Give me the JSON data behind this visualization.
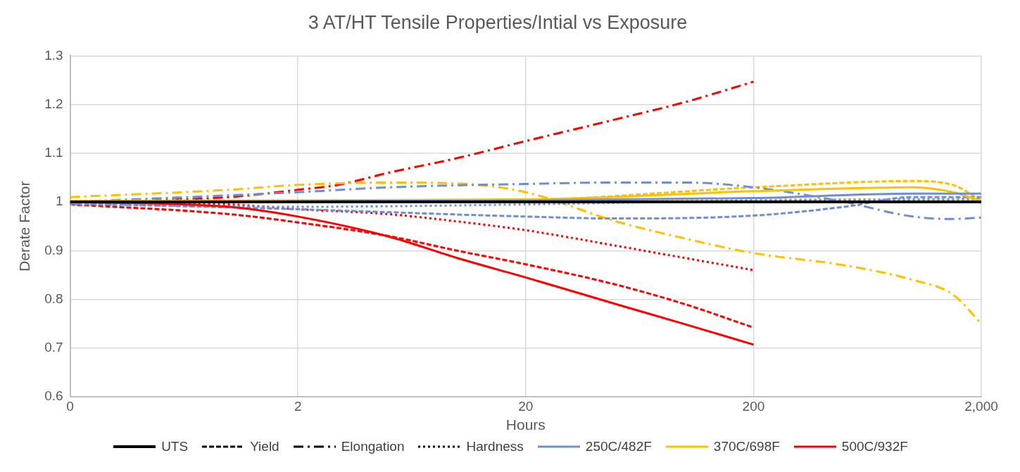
{
  "chart_data": {
    "type": "line",
    "title": "3 AT/HT Tensile Properties/Intial vs Exposure",
    "xlabel": "Hours",
    "ylabel": "Derate Factor",
    "log": "x",
    "grid": true,
    "legend": "bottom",
    "marker": "none",
    "xlim": [
      0.2,
      2000
    ],
    "xticks": [
      {
        "value": 0.2,
        "label": "0"
      },
      2,
      20,
      200,
      {
        "value": 2000,
        "label": "2,000"
      }
    ],
    "ylim": [
      0.6,
      1.3
    ],
    "yticks": [
      0.6,
      0.7,
      0.8,
      0.9,
      1,
      1.1,
      1.2,
      1.3
    ],
    "annotations": [
      "Yield",
      "Elongation",
      "Hardness"
    ],
    "series": [
      {
        "name": "UTS",
        "color": "#000000",
        "line_style": "solid",
        "x": [
          0.2,
          2000
        ],
        "values": [
          1,
          1
        ]
      },
      {
        "name": "250C/482F",
        "color": "#6f8fd4",
        "line_style": "solid",
        "x": [
          0.2,
          20,
          200,
          1000,
          2000
        ],
        "values": [
          1.0,
          1.003,
          1.008,
          1.017,
          1.017
        ]
      },
      {
        "name": "370C/698F",
        "color": "#ffc000",
        "line_style": "solid",
        "x": [
          0.2,
          20,
          200,
          1000,
          1500,
          2000
        ],
        "values": [
          1.002,
          1.005,
          1.022,
          1.03,
          1.02,
          1.002
        ]
      },
      {
        "name": "500C/932F",
        "color": "#ff0000",
        "line_style": "solid",
        "x": [
          0.2,
          1,
          2,
          5,
          10,
          20,
          50,
          100,
          200
        ],
        "values": [
          1.0,
          0.99,
          0.97,
          0.929,
          0.885,
          0.845,
          0.79,
          0.749,
          0.707
        ]
      },
      {
        "color": "#6f8fd4",
        "line_style": "dashed",
        "x": [
          0.2,
          2,
          20,
          50,
          200,
          500,
          1000,
          2000
        ],
        "values": [
          0.997,
          0.985,
          0.97,
          0.966,
          0.972,
          0.99,
          1.01,
          1.01
        ]
      },
      {
        "color": "#6f8fd4",
        "line_style": "dashdot",
        "x": [
          0.2,
          2,
          5,
          20,
          50,
          100,
          200,
          500,
          1000,
          1500,
          2000
        ],
        "values": [
          1.0,
          1.02,
          1.03,
          1.037,
          1.04,
          1.04,
          1.03,
          1.0,
          0.97,
          0.965,
          0.968
        ]
      },
      {
        "color": "#6f8fd4",
        "line_style": "dotted",
        "x": [
          0.2,
          2,
          20,
          200,
          2000
        ],
        "values": [
          0.995,
          0.99,
          0.995,
          1.003,
          1.006
        ]
      },
      {
        "color": "#ffc000",
        "line_style": "dashed",
        "x": [
          2,
          20,
          200,
          1000,
          1500,
          2000
        ],
        "values": [
          1.001,
          1.004,
          1.03,
          1.043,
          1.035,
          1.003
        ]
      },
      {
        "color": "#ffc000",
        "line_style": "dashdot",
        "x": [
          0.2,
          1,
          2,
          5,
          10,
          20,
          50,
          100,
          200,
          500,
          1000,
          1500,
          2000
        ],
        "values": [
          1.01,
          1.025,
          1.035,
          1.04,
          1.038,
          1.02,
          0.96,
          0.925,
          0.895,
          0.87,
          0.84,
          0.81,
          0.75
        ]
      },
      {
        "color": "#ffc000",
        "line_style": "dotted",
        "x": [
          0.2,
          20,
          200,
          2000
        ],
        "values": [
          1.003,
          1.004,
          1.005,
          1.004
        ]
      },
      {
        "color": "#ff0000",
        "line_style": "dashed",
        "x": [
          0.2,
          1,
          2,
          5,
          10,
          20,
          50,
          100,
          200
        ],
        "values": [
          0.995,
          0.975,
          0.958,
          0.93,
          0.9,
          0.872,
          0.83,
          0.79,
          0.742
        ]
      },
      {
        "color": "#ff0000",
        "line_style": "dashdot",
        "x": [
          0.2,
          1,
          2,
          3,
          5,
          10,
          20,
          50,
          100,
          200
        ],
        "values": [
          1.0,
          1.01,
          1.025,
          1.035,
          1.06,
          1.09,
          1.125,
          1.17,
          1.205,
          1.247
        ]
      },
      {
        "color": "#ff0000",
        "line_style": "dotted",
        "x": [
          0.2,
          1,
          2,
          5,
          10,
          20,
          50,
          100,
          200
        ],
        "values": [
          1.0,
          0.995,
          0.985,
          0.975,
          0.96,
          0.942,
          0.91,
          0.885,
          0.86
        ]
      }
    ]
  }
}
